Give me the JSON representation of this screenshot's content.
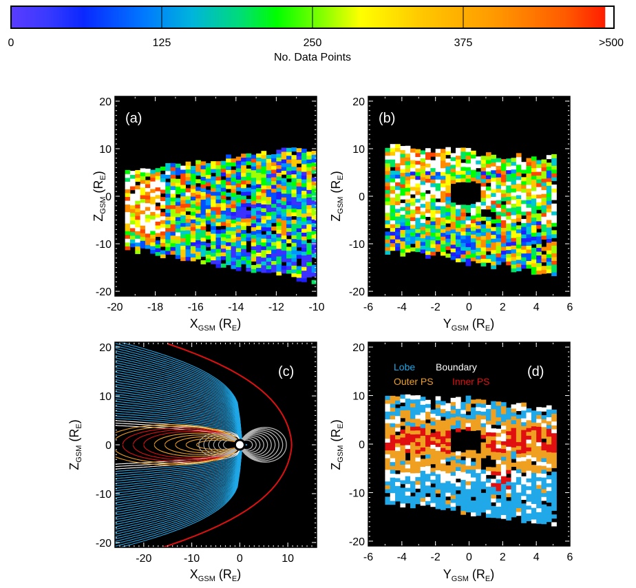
{
  "colorbar": {
    "tick_labels": [
      "0",
      "125",
      "250",
      "375",
      ">500"
    ],
    "tick_values": [
      0,
      125,
      250,
      375,
      500
    ],
    "label": "No. Data Points",
    "range": [
      0,
      500
    ],
    "colors": [
      "#5a3cff",
      "#0000ff",
      "#0096ff",
      "#00c8c8",
      "#00e632",
      "#00ff00",
      "#b4ff00",
      "#ffff00",
      "#ffc800",
      "#ff9600",
      "#ff5000",
      "#ff0000",
      "#ffffff"
    ]
  },
  "chart_data": [
    {
      "id": "a",
      "type": "heatmap",
      "panel_label": "(a)",
      "xlabel_main": "X",
      "xlabel_sub": "GSM",
      "xlabel_unit_pre": " (R",
      "xlabel_unit_sub": "E",
      "xlabel_unit_post": ")",
      "ylabel_main": "Z",
      "ylabel_sub": "GSM",
      "ylabel_unit_pre": " (R",
      "ylabel_unit_sub": "E",
      "ylabel_unit_post": ")",
      "xlim": [
        -20,
        -10
      ],
      "ylim": [
        -21,
        21
      ],
      "xticks": [
        -20,
        -18,
        -16,
        -14,
        -12,
        -10
      ],
      "xtick_labels": [
        "-20",
        "-18",
        "-16",
        "-14",
        "-12",
        "-10"
      ],
      "yticks": [
        -20,
        -10,
        0,
        10,
        20
      ],
      "ytick_labels": [
        "-20",
        "-10",
        "0",
        "10",
        "20"
      ],
      "color_scale": "No. Data Points",
      "background": "#000000"
    },
    {
      "id": "b",
      "type": "heatmap",
      "panel_label": "(b)",
      "xlabel_main": "Y",
      "xlabel_sub": "GSM",
      "xlabel_unit_pre": " (R",
      "xlabel_unit_sub": "E",
      "xlabel_unit_post": ")",
      "ylabel_main": "Z",
      "ylabel_sub": "GSM",
      "ylabel_unit_pre": " (R",
      "ylabel_unit_sub": "E",
      "ylabel_unit_post": ")",
      "xlim": [
        -6,
        6
      ],
      "ylim": [
        -21,
        21
      ],
      "xticks": [
        -6,
        -4,
        -2,
        0,
        2,
        4,
        6
      ],
      "xtick_labels": [
        "-6",
        "-4",
        "-2",
        "0",
        "2",
        "4",
        "6"
      ],
      "yticks": [
        -20,
        -10,
        0,
        10,
        20
      ],
      "ytick_labels": [
        "-20",
        "-10",
        "0",
        "10",
        "20"
      ],
      "color_scale": "No. Data Points",
      "background": "#000000"
    },
    {
      "id": "c",
      "type": "line",
      "panel_label": "(c)",
      "xlabel_main": "X",
      "xlabel_sub": "GSM",
      "xlabel_unit_pre": " (R",
      "xlabel_unit_sub": "E",
      "xlabel_unit_post": ")",
      "ylabel_main": "Z",
      "ylabel_sub": "GSM",
      "ylabel_unit_pre": " (R",
      "ylabel_unit_sub": "E",
      "ylabel_unit_post": ")",
      "xlim": [
        -26,
        16
      ],
      "ylim": [
        -21,
        21
      ],
      "xticks": [
        -20,
        -10,
        0,
        10
      ],
      "xtick_labels": [
        "-20",
        "-10",
        "0",
        "10"
      ],
      "yticks": [
        -20,
        -10,
        0,
        10,
        20
      ],
      "ytick_labels": [
        "-20",
        "-10",
        "0",
        "10",
        "20"
      ],
      "background": "#000000",
      "region_colors": {
        "lobe": "#20a8e8",
        "boundary": "#ffffff",
        "outer_ps": "#f0a020",
        "inner_ps": "#e01010",
        "closed": "#b4b4b4",
        "magnetopause": "#e01010"
      },
      "magnetopause_subsolar_x": 10.8,
      "magnetopause_flank_z": 21
    },
    {
      "id": "d",
      "type": "heatmap",
      "panel_label": "(d)",
      "xlabel_main": "Y",
      "xlabel_sub": "GSM",
      "xlabel_unit_pre": " (R",
      "xlabel_unit_sub": "E",
      "xlabel_unit_post": ")",
      "ylabel_main": "Z",
      "ylabel_sub": "GSM",
      "ylabel_unit_pre": " (R",
      "ylabel_unit_sub": "E",
      "ylabel_unit_post": ")",
      "xlim": [
        -6,
        6
      ],
      "ylim": [
        -21,
        21
      ],
      "xticks": [
        -6,
        -4,
        -2,
        0,
        2,
        4,
        6
      ],
      "xtick_labels": [
        "-6",
        "-4",
        "-2",
        "0",
        "2",
        "4",
        "6"
      ],
      "yticks": [
        -20,
        -10,
        0,
        10,
        20
      ],
      "ytick_labels": [
        "-20",
        "-10",
        "0",
        "10",
        "20"
      ],
      "background": "#000000",
      "legend": [
        {
          "label": "Lobe",
          "color": "#20a8e8"
        },
        {
          "label": "Boundary",
          "color": "#ffffff"
        },
        {
          "label": "Outer PS",
          "color": "#f0a020"
        },
        {
          "label": "Inner PS",
          "color": "#e01010"
        }
      ]
    }
  ]
}
